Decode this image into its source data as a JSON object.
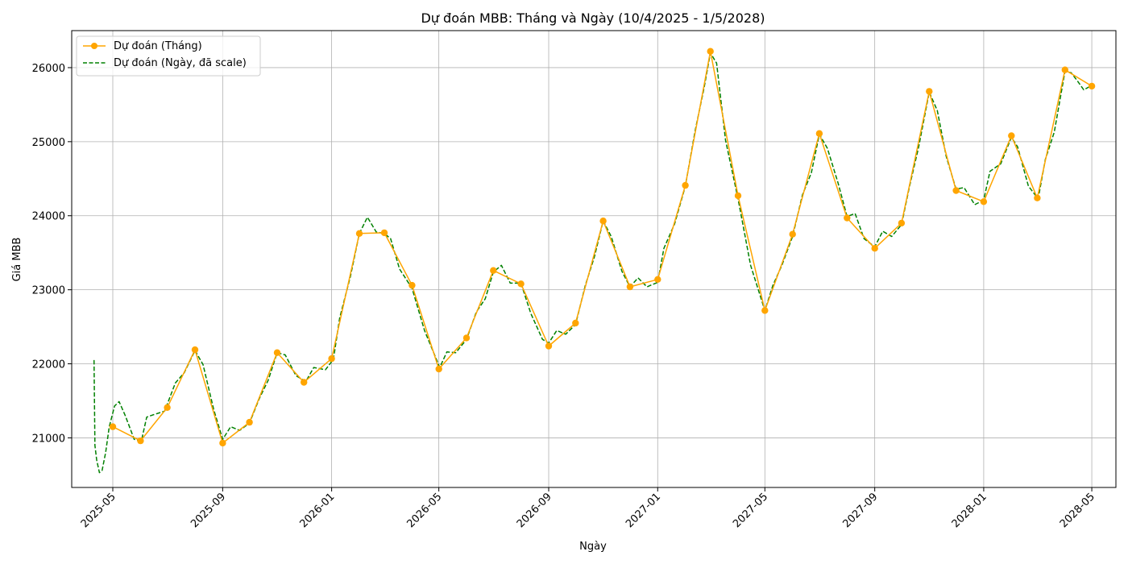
{
  "chart_data": {
    "type": "line",
    "title": "Dự đoán MBB: Tháng và Ngày (10/4/2025 - 1/5/2028)",
    "xlabel": "Ngày",
    "ylabel": "Giá MBB",
    "xlim": [
      "2025-03-16",
      "2028-05-28"
    ],
    "ylim": [
      20330,
      26500
    ],
    "x_ticks": [
      "2025-05",
      "2025-09",
      "2026-01",
      "2026-05",
      "2026-09",
      "2027-01",
      "2027-05",
      "2027-09",
      "2028-01",
      "2028-05"
    ],
    "y_ticks": [
      21000,
      22000,
      23000,
      24000,
      25000,
      26000
    ],
    "grid": true,
    "legend_position": "top-left",
    "series": [
      {
        "name": "Dự đoán (Tháng)",
        "color": "#ffa500",
        "style": "solid-markers",
        "points": [
          [
            "2025-05-01",
            21150
          ],
          [
            "2025-06-01",
            20960
          ],
          [
            "2025-07-01",
            21410
          ],
          [
            "2025-08-01",
            22190
          ],
          [
            "2025-09-01",
            20930
          ],
          [
            "2025-10-01",
            21210
          ],
          [
            "2025-11-01",
            22150
          ],
          [
            "2025-12-01",
            21750
          ],
          [
            "2026-01-01",
            22070
          ],
          [
            "2026-02-01",
            23760
          ],
          [
            "2026-03-01",
            23770
          ],
          [
            "2026-04-01",
            23060
          ],
          [
            "2026-05-01",
            21930
          ],
          [
            "2026-06-01",
            22350
          ],
          [
            "2026-07-01",
            23260
          ],
          [
            "2026-08-01",
            23080
          ],
          [
            "2026-09-01",
            22240
          ],
          [
            "2026-10-01",
            22550
          ],
          [
            "2026-11-01",
            23930
          ],
          [
            "2026-12-01",
            23040
          ],
          [
            "2027-01-01",
            23140
          ],
          [
            "2027-02-01",
            24410
          ],
          [
            "2027-03-01",
            26220
          ],
          [
            "2027-04-01",
            24270
          ],
          [
            "2027-05-01",
            22720
          ],
          [
            "2027-06-01",
            23750
          ],
          [
            "2027-07-01",
            25110
          ],
          [
            "2027-08-01",
            23970
          ],
          [
            "2027-09-01",
            23560
          ],
          [
            "2027-10-01",
            23900
          ],
          [
            "2027-11-01",
            25680
          ],
          [
            "2027-12-01",
            24340
          ],
          [
            "2028-01-01",
            24190
          ],
          [
            "2028-02-01",
            25080
          ],
          [
            "2028-03-01",
            24240
          ],
          [
            "2028-04-01",
            25970
          ],
          [
            "2028-05-01",
            25750
          ]
        ]
      },
      {
        "name": "Dự đoán (Ngày, đã scale)",
        "color": "#008000",
        "style": "dashed",
        "points": [
          [
            "2025-04-10",
            22050
          ],
          [
            "2025-04-11",
            20900
          ],
          [
            "2025-04-13",
            20700
          ],
          [
            "2025-04-16",
            20530
          ],
          [
            "2025-04-19",
            20560
          ],
          [
            "2025-04-23",
            20800
          ],
          [
            "2025-04-27",
            21150
          ],
          [
            "2025-05-03",
            21430
          ],
          [
            "2025-05-08",
            21490
          ],
          [
            "2025-05-15",
            21300
          ],
          [
            "2025-05-25",
            20980
          ],
          [
            "2025-06-02",
            20960
          ],
          [
            "2025-06-08",
            21280
          ],
          [
            "2025-06-15",
            21310
          ],
          [
            "2025-06-28",
            21360
          ],
          [
            "2025-07-10",
            21740
          ],
          [
            "2025-07-20",
            21880
          ],
          [
            "2025-08-01",
            22180
          ],
          [
            "2025-08-10",
            21990
          ],
          [
            "2025-08-22",
            21380
          ],
          [
            "2025-09-01",
            20980
          ],
          [
            "2025-09-10",
            21150
          ],
          [
            "2025-09-20",
            21100
          ],
          [
            "2025-10-01",
            21200
          ],
          [
            "2025-10-12",
            21530
          ],
          [
            "2025-10-22",
            21780
          ],
          [
            "2025-11-01",
            22150
          ],
          [
            "2025-11-10",
            22120
          ],
          [
            "2025-11-22",
            21840
          ],
          [
            "2025-12-03",
            21760
          ],
          [
            "2025-12-12",
            21950
          ],
          [
            "2025-12-25",
            21920
          ],
          [
            "2026-01-03",
            22060
          ],
          [
            "2026-01-10",
            22620
          ],
          [
            "2026-01-22",
            23180
          ],
          [
            "2026-02-01",
            23760
          ],
          [
            "2026-02-10",
            23980
          ],
          [
            "2026-02-20",
            23780
          ],
          [
            "2026-03-01",
            23760
          ],
          [
            "2026-03-08",
            23690
          ],
          [
            "2026-03-18",
            23280
          ],
          [
            "2026-04-01",
            23020
          ],
          [
            "2026-04-15",
            22450
          ],
          [
            "2026-05-02",
            21950
          ],
          [
            "2026-05-10",
            22160
          ],
          [
            "2026-05-20",
            22150
          ],
          [
            "2026-06-01",
            22330
          ],
          [
            "2026-06-12",
            22700
          ],
          [
            "2026-06-22",
            22880
          ],
          [
            "2026-07-01",
            23240
          ],
          [
            "2026-07-10",
            23330
          ],
          [
            "2026-07-20",
            23090
          ],
          [
            "2026-08-01",
            23090
          ],
          [
            "2026-08-12",
            22680
          ],
          [
            "2026-08-25",
            22330
          ],
          [
            "2026-09-01",
            22280
          ],
          [
            "2026-09-10",
            22450
          ],
          [
            "2026-09-20",
            22400
          ],
          [
            "2026-10-01",
            22530
          ],
          [
            "2026-10-12",
            23060
          ],
          [
            "2026-10-22",
            23440
          ],
          [
            "2026-11-01",
            23930
          ],
          [
            "2026-11-10",
            23720
          ],
          [
            "2026-11-22",
            23250
          ],
          [
            "2026-12-01",
            23040
          ],
          [
            "2026-12-10",
            23160
          ],
          [
            "2026-12-20",
            23040
          ],
          [
            "2027-01-01",
            23100
          ],
          [
            "2027-01-08",
            23560
          ],
          [
            "2027-01-20",
            23890
          ],
          [
            "2027-02-01",
            24400
          ],
          [
            "2027-02-12",
            25150
          ],
          [
            "2027-02-22",
            25730
          ],
          [
            "2027-03-01",
            26200
          ],
          [
            "2027-03-08",
            26060
          ],
          [
            "2027-03-18",
            25020
          ],
          [
            "2027-04-01",
            24230
          ],
          [
            "2027-04-15",
            23330
          ],
          [
            "2027-05-01",
            22720
          ],
          [
            "2027-05-10",
            23060
          ],
          [
            "2027-05-20",
            23330
          ],
          [
            "2027-06-01",
            23720
          ],
          [
            "2027-06-12",
            24280
          ],
          [
            "2027-06-22",
            24580
          ],
          [
            "2027-07-01",
            25100
          ],
          [
            "2027-07-10",
            24910
          ],
          [
            "2027-07-22",
            24440
          ],
          [
            "2027-08-01",
            23990
          ],
          [
            "2027-08-10",
            24030
          ],
          [
            "2027-08-20",
            23690
          ],
          [
            "2027-09-01",
            23580
          ],
          [
            "2027-09-10",
            23790
          ],
          [
            "2027-09-20",
            23720
          ],
          [
            "2027-10-01",
            23880
          ],
          [
            "2027-10-10",
            24400
          ],
          [
            "2027-10-20",
            24920
          ],
          [
            "2027-11-01",
            25670
          ],
          [
            "2027-11-10",
            25420
          ],
          [
            "2027-11-20",
            24800
          ],
          [
            "2027-12-01",
            24360
          ],
          [
            "2027-12-10",
            24380
          ],
          [
            "2027-12-22",
            24150
          ],
          [
            "2028-01-01",
            24210
          ],
          [
            "2028-01-08",
            24600
          ],
          [
            "2028-01-20",
            24700
          ],
          [
            "2028-02-01",
            25060
          ],
          [
            "2028-02-08",
            24930
          ],
          [
            "2028-02-20",
            24400
          ],
          [
            "2028-03-02",
            24230
          ],
          [
            "2028-03-10",
            24760
          ],
          [
            "2028-03-20",
            25130
          ],
          [
            "2028-04-01",
            25950
          ],
          [
            "2028-04-08",
            25930
          ],
          [
            "2028-04-15",
            25820
          ],
          [
            "2028-04-22",
            25700
          ],
          [
            "2028-05-01",
            25760
          ]
        ]
      }
    ]
  }
}
